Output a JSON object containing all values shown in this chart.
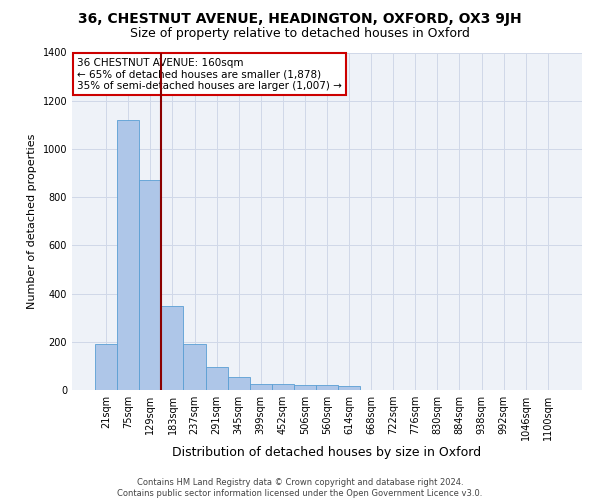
{
  "title_line1": "36, CHESTNUT AVENUE, HEADINGTON, OXFORD, OX3 9JH",
  "title_line2": "Size of property relative to detached houses in Oxford",
  "xlabel": "Distribution of detached houses by size in Oxford",
  "ylabel": "Number of detached properties",
  "footer_line1": "Contains HM Land Registry data © Crown copyright and database right 2024.",
  "footer_line2": "Contains public sector information licensed under the Open Government Licence v3.0.",
  "annotation_line1": "36 CHESTNUT AVENUE: 160sqm",
  "annotation_line2": "← 65% of detached houses are smaller (1,878)",
  "annotation_line3": "35% of semi-detached houses are larger (1,007) →",
  "bar_labels": [
    "21sqm",
    "75sqm",
    "129sqm",
    "183sqm",
    "237sqm",
    "291sqm",
    "345sqm",
    "399sqm",
    "452sqm",
    "506sqm",
    "560sqm",
    "614sqm",
    "668sqm",
    "722sqm",
    "776sqm",
    "830sqm",
    "884sqm",
    "938sqm",
    "992sqm",
    "1046sqm",
    "1100sqm"
  ],
  "bar_values": [
    190,
    1120,
    870,
    350,
    190,
    95,
    55,
    25,
    25,
    20,
    20,
    15,
    0,
    0,
    0,
    0,
    0,
    0,
    0,
    0,
    0
  ],
  "bar_color": "#aec6e8",
  "bar_edge_color": "#5a9fd4",
  "vline_color": "#8b0000",
  "vline_x": 2.5,
  "ylim": [
    0,
    1400
  ],
  "yticks": [
    0,
    200,
    400,
    600,
    800,
    1000,
    1200,
    1400
  ],
  "grid_color": "#d0d8e8",
  "bg_color": "#eef2f8",
  "annotation_box_color": "#cc0000",
  "title1_fontsize": 10,
  "title2_fontsize": 9,
  "ylabel_fontsize": 8,
  "xlabel_fontsize": 9,
  "tick_fontsize": 7,
  "footer_fontsize": 6,
  "annot_fontsize": 7.5
}
